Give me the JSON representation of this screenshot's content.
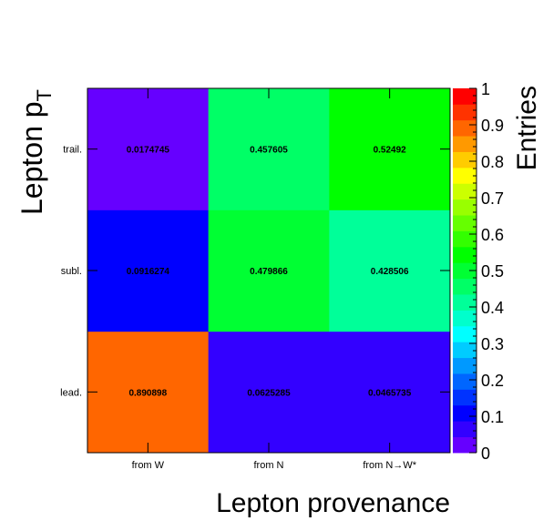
{
  "chart_data": {
    "type": "heatmap",
    "xlabel": "Lepton provenance",
    "ylabel": "Lepton p",
    "ylabel_sub": "T",
    "x_categories": [
      "from W",
      "from N",
      "from N→W*"
    ],
    "y_categories": [
      "lead.",
      "subl.",
      "trail."
    ],
    "values": [
      [
        0.890898,
        0.0625285,
        0.0465735
      ],
      [
        0.0916274,
        0.479866,
        0.428506
      ],
      [
        0.0174745,
        0.457605,
        0.52492
      ]
    ],
    "value_labels": [
      [
        "0.890898",
        "0.0625285",
        "0.0465735"
      ],
      [
        "0.0916274",
        "0.479866",
        "0.428506"
      ],
      [
        "0.0174745",
        "0.457605",
        "0.52492"
      ]
    ],
    "colorbar": {
      "title": "Entries",
      "range": [
        0,
        1
      ],
      "ticks": [
        "0",
        "0.1",
        "0.2",
        "0.3",
        "0.4",
        "0.5",
        "0.6",
        "0.7",
        "0.8",
        "0.9",
        "1"
      ],
      "colors": [
        "#6600ff",
        "#3300ff",
        "#0000ff",
        "#0033ff",
        "#0066ff",
        "#0099ff",
        "#00ccff",
        "#00ffff",
        "#00ffcc",
        "#00ff99",
        "#00ff66",
        "#00ff33",
        "#00ff00",
        "#33ff00",
        "#66ff00",
        "#99ff00",
        "#ccff00",
        "#ffff00",
        "#ffcc00",
        "#ff9900",
        "#ff6600",
        "#ff3300",
        "#ff0000"
      ]
    },
    "grid": false
  }
}
